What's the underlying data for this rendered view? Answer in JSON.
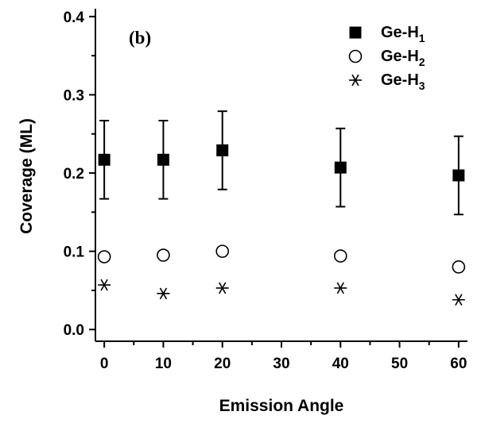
{
  "chart_data": {
    "type": "scatter",
    "panel_label": "(b)",
    "xlabel": "Emission Angle",
    "ylabel": "Coverage (ML)",
    "xlim": [
      -1.5,
      61.5
    ],
    "ylim": [
      -0.015,
      0.41
    ],
    "xticks": [
      0,
      10,
      20,
      30,
      40,
      50,
      60
    ],
    "yticks": [
      0.0,
      0.1,
      0.2,
      0.3,
      0.4
    ],
    "ytick_labels": [
      "0.0",
      "0.1",
      "0.2",
      "0.3",
      "0.4"
    ],
    "grid": false,
    "legend_position": "top-right",
    "series": [
      {
        "name_main": "Ge-H",
        "name_sub": "1",
        "marker": "filled-square",
        "x": [
          0,
          10,
          20,
          40,
          60
        ],
        "y": [
          0.217,
          0.217,
          0.229,
          0.207,
          0.197
        ],
        "error": [
          0.05,
          0.05,
          0.05,
          0.05,
          0.05
        ]
      },
      {
        "name_main": "Ge-H",
        "name_sub": "2",
        "marker": "open-circle",
        "x": [
          0,
          10,
          20,
          40,
          60
        ],
        "y": [
          0.093,
          0.095,
          0.1,
          0.094,
          0.08
        ]
      },
      {
        "name_main": "Ge-H",
        "name_sub": "3",
        "marker": "asterisk",
        "x": [
          0,
          10,
          20,
          40,
          60
        ],
        "y": [
          0.057,
          0.046,
          0.053,
          0.053,
          0.038
        ]
      }
    ]
  }
}
